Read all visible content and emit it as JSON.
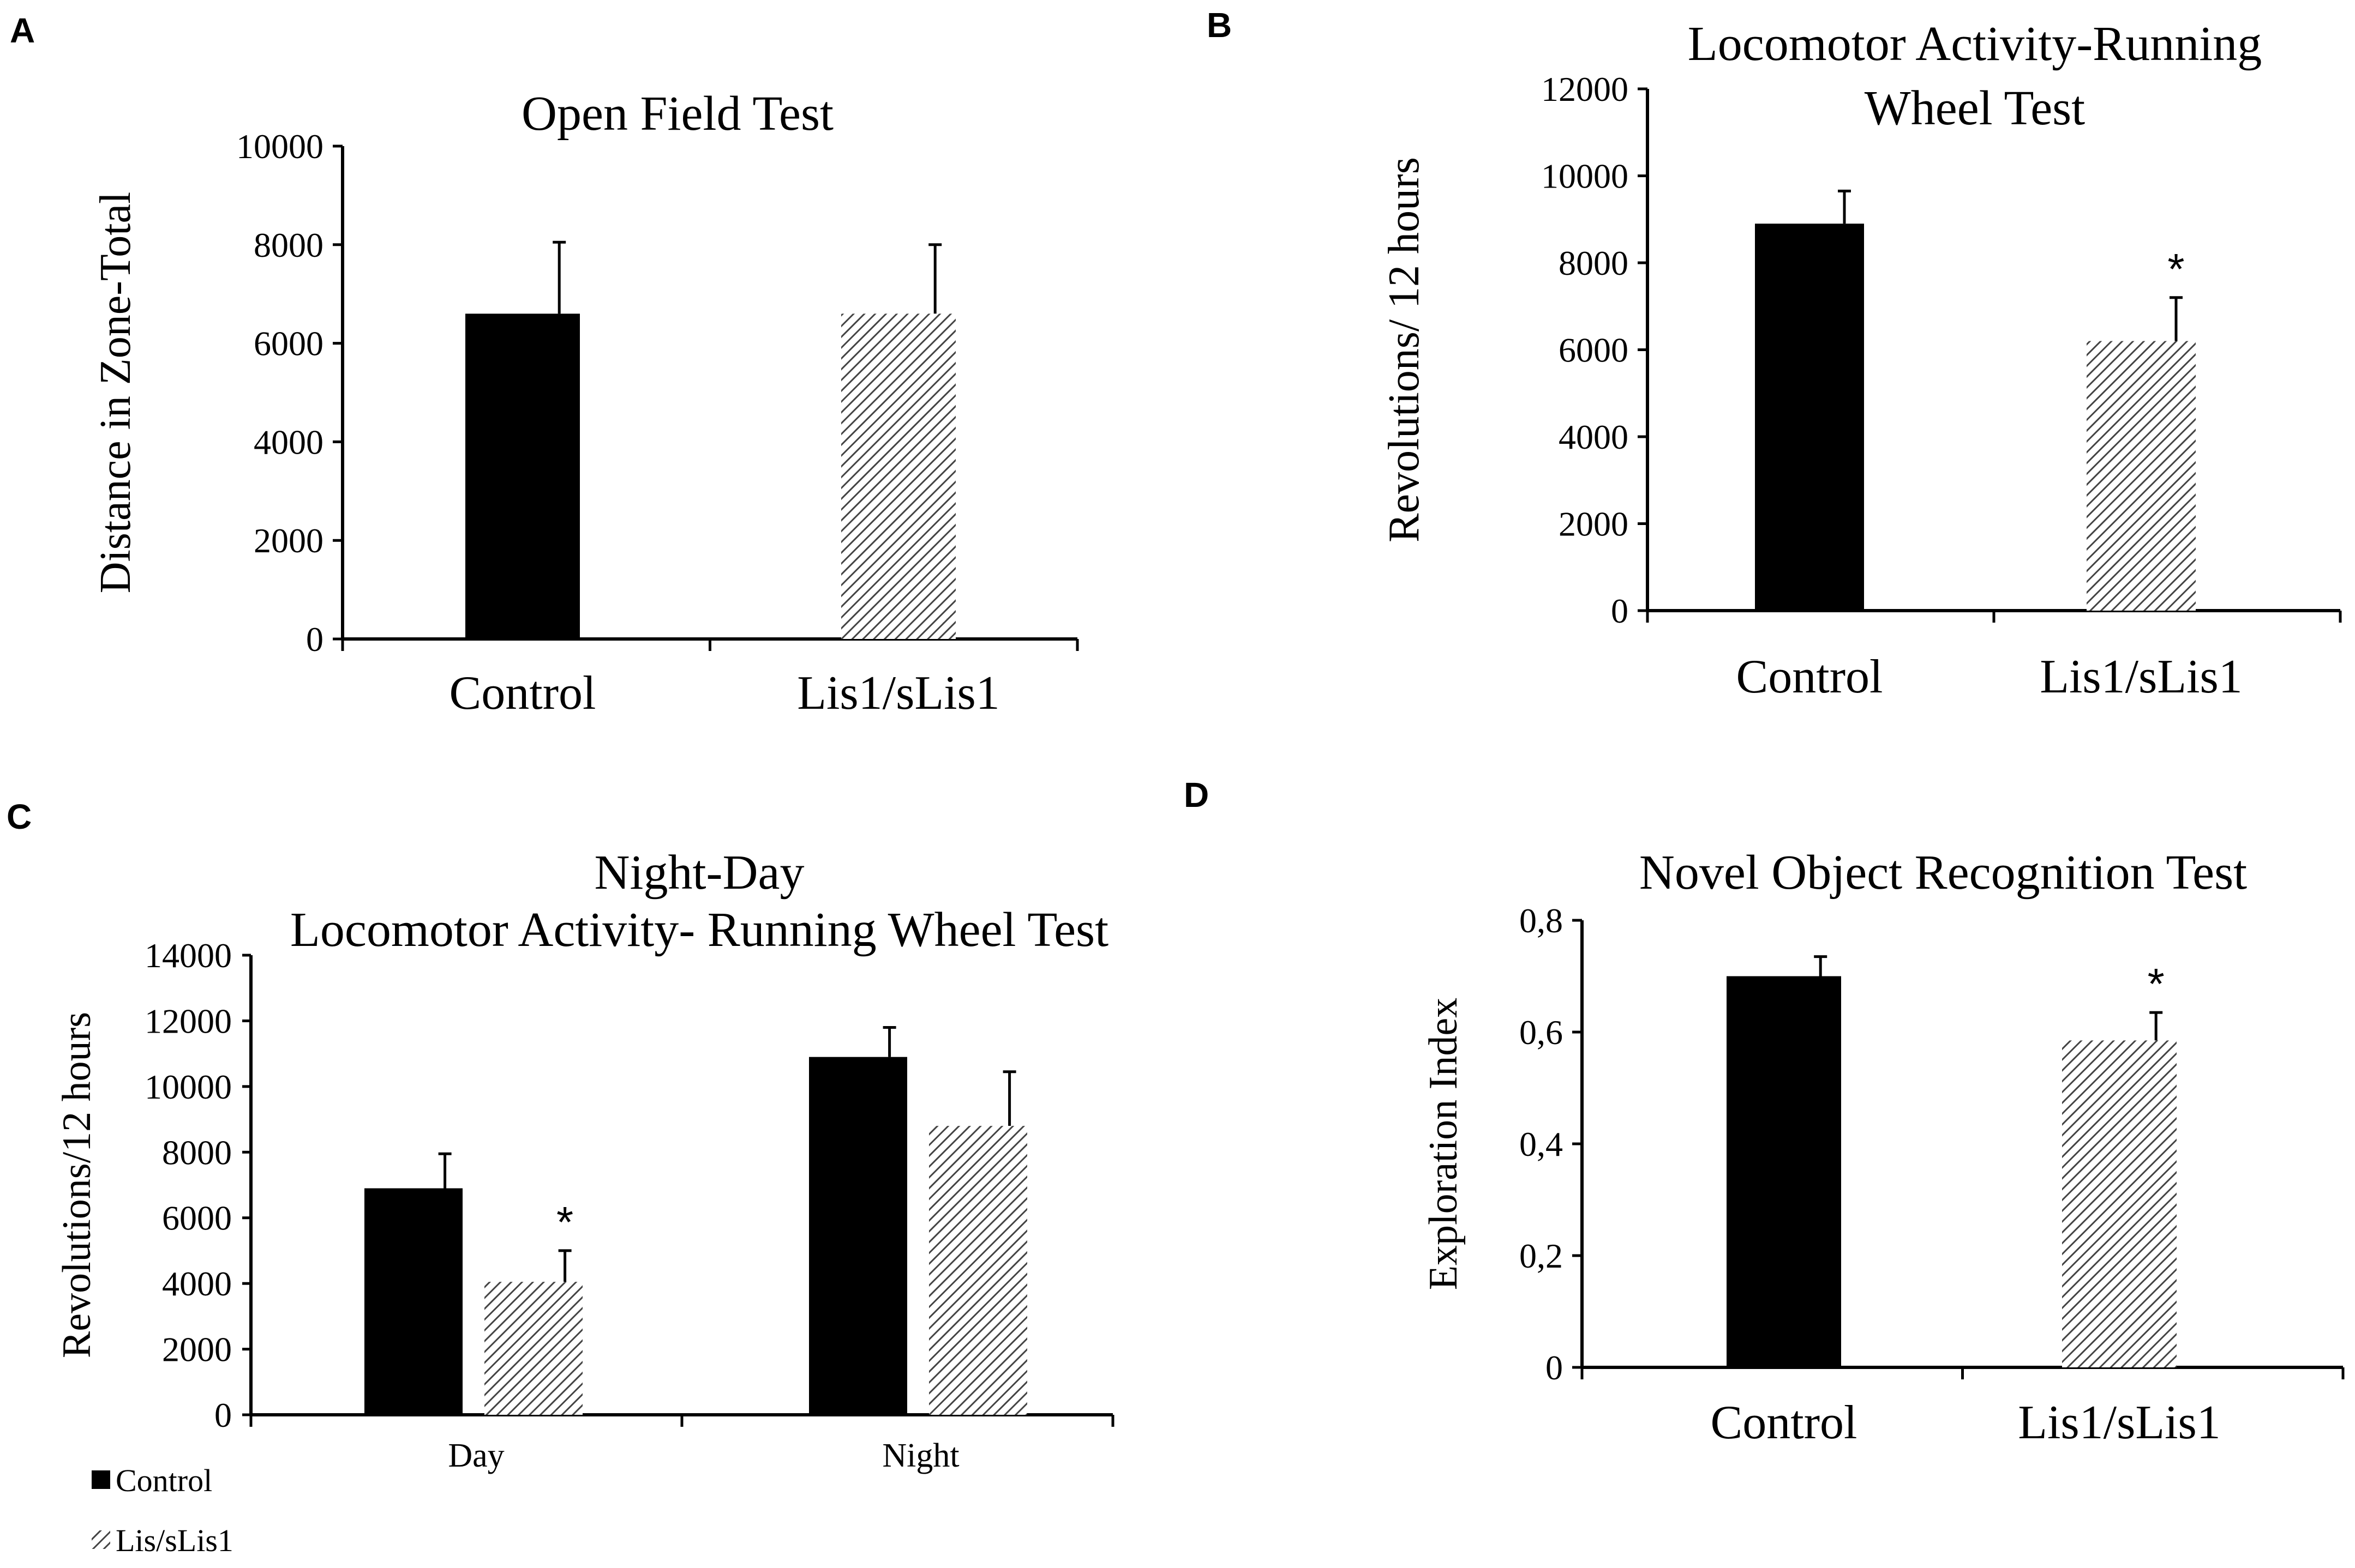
{
  "colors": {
    "control": "#000000",
    "lis1": "#444444",
    "axis": "#000000"
  },
  "chart_data": [
    {
      "panel": "A",
      "type": "bar",
      "title_lines": [
        "Open Field Test"
      ],
      "ylabel": "Distance in Zone-Total",
      "xlabel": "",
      "ylim": [
        0,
        10000
      ],
      "yticks": [
        "0",
        "2000",
        "4000",
        "6000",
        "8000",
        "10000"
      ],
      "categories": [
        "Control",
        "Lis1/sLis1"
      ],
      "series": [
        {
          "name": "Distance",
          "values": [
            6600,
            6600
          ],
          "errors": [
            1450,
            1400
          ],
          "styles": [
            "solid",
            "hatch"
          ]
        }
      ],
      "annotations": [
        "",
        ""
      ]
    },
    {
      "panel": "B",
      "type": "bar",
      "title_lines": [
        "Locomotor Activity-Running",
        "Wheel Test"
      ],
      "ylabel": "Revolutions/  12 hours",
      "xlabel": "",
      "ylim": [
        0,
        12000
      ],
      "yticks": [
        "0",
        "2000",
        "4000",
        "6000",
        "8000",
        "10000",
        "12000"
      ],
      "categories": [
        "Control",
        "Lis1/sLis1"
      ],
      "series": [
        {
          "name": "Revolutions",
          "values": [
            8900,
            6200
          ],
          "errors": [
            750,
            1000
          ],
          "styles": [
            "solid",
            "hatch"
          ]
        }
      ],
      "annotations": [
        "",
        "*"
      ]
    },
    {
      "panel": "C",
      "type": "bar",
      "title_lines": [
        "Night-Day",
        "Locomotor Activity-  Running  Wheel Test"
      ],
      "ylabel": "Revolutions/12 hours",
      "xlabel": "",
      "ylim": [
        0,
        14000
      ],
      "yticks": [
        "0",
        "2000",
        "4000",
        "6000",
        "8000",
        "10000",
        "12000",
        "14000"
      ],
      "categories": [
        "Day",
        "Night"
      ],
      "series": [
        {
          "name": "Control",
          "values": [
            6900,
            10900
          ],
          "errors": [
            1050,
            900
          ],
          "style": "solid"
        },
        {
          "name": "Lis/sLis1",
          "values": [
            4050,
            8800
          ],
          "errors": [
            950,
            1650
          ],
          "style": "hatch"
        }
      ],
      "annotations": [
        [
          "",
          ""
        ],
        [
          "*",
          ""
        ]
      ],
      "legend": {
        "position": "bottom-left",
        "entries": [
          "Control",
          "Lis/sLis1"
        ]
      }
    },
    {
      "panel": "D",
      "type": "bar",
      "title_lines": [
        "Novel Object Recognition Test"
      ],
      "ylabel": "Exploration Index",
      "xlabel": "",
      "ylim": [
        0,
        0.8
      ],
      "yticks": [
        "0",
        "0,2",
        "0,4",
        "0,6",
        "0,8"
      ],
      "categories": [
        "Control",
        "Lis1/sLis1"
      ],
      "series": [
        {
          "name": "Exploration Index",
          "values": [
            0.7,
            0.585
          ],
          "errors": [
            0.035,
            0.05
          ],
          "styles": [
            "solid",
            "hatch"
          ]
        }
      ],
      "annotations": [
        "",
        "*"
      ]
    }
  ]
}
